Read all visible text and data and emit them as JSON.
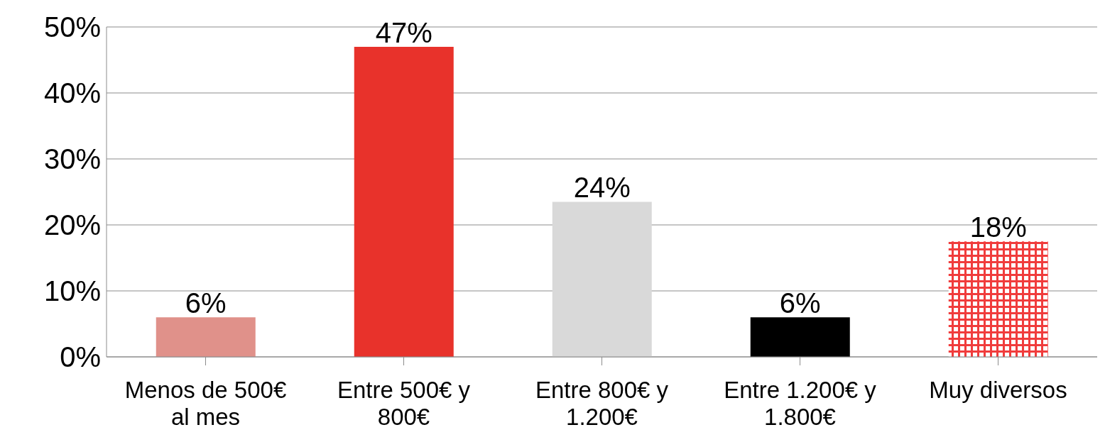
{
  "chart_data": {
    "type": "bar",
    "categories": [
      "Menos de 500€ al mes",
      "Entre 500€ y 800€",
      "Entre 800€ y 1.200€",
      "Entre 1.200€ y 1.800€",
      "Muy diversos"
    ],
    "values": [
      6,
      47,
      23.5,
      6,
      17.5
    ],
    "value_labels": [
      "6%",
      "47%",
      "24%",
      "6%",
      "18%"
    ],
    "colors": [
      "#e0918a",
      "#e8322b",
      "#d9d9d9",
      "#000000",
      "#f03c3c"
    ],
    "ylim": [
      0,
      50
    ],
    "yticks": [
      {
        "value": 0,
        "label": "0%"
      },
      {
        "value": 10,
        "label": "10%"
      },
      {
        "value": 20,
        "label": "20%"
      },
      {
        "value": 30,
        "label": "30%"
      },
      {
        "value": 40,
        "label": "40%"
      },
      {
        "value": 50,
        "label": "50%"
      }
    ],
    "grid": "y"
  }
}
